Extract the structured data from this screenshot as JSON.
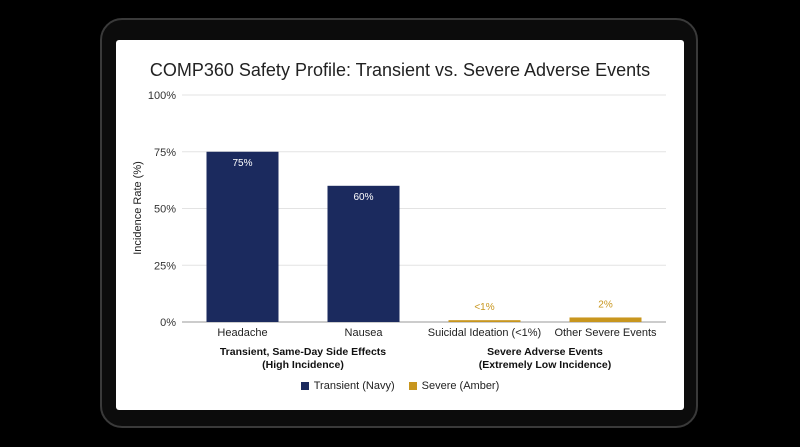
{
  "chart_data": {
    "type": "bar",
    "title": "COMP360 Safety Profile: Transient vs. Severe Adverse Events",
    "ylabel": "Incidence Rate (%)",
    "xlabel": "",
    "ylim": [
      0,
      100
    ],
    "yticks": [
      "0%",
      "25%",
      "50%",
      "75%",
      "100%"
    ],
    "ytick_values": [
      0,
      25,
      50,
      75,
      100
    ],
    "grid": true,
    "legend_position": "bottom",
    "categories": [
      "Headache",
      "Nausea",
      "Suicidal Ideation (<1%)",
      "Other Severe Events"
    ],
    "values": [
      75,
      60,
      0.8,
      2
    ],
    "data_labels": [
      "75%",
      "60%",
      "<1%",
      "2%"
    ],
    "bar_series": [
      "transient",
      "transient",
      "severe",
      "severe"
    ],
    "groups": [
      {
        "label_line1": "Transient, Same-Day Side Effects",
        "label_line2": "(High Incidence)"
      },
      {
        "label_line1": "Severe Adverse Events",
        "label_line2": "(Extremely Low Incidence)"
      }
    ],
    "series": [
      {
        "key": "transient",
        "name": "Transient (Navy)",
        "color": "#1b2a5e"
      },
      {
        "key": "severe",
        "name": "Severe (Amber)",
        "color": "#c8961e"
      }
    ]
  }
}
